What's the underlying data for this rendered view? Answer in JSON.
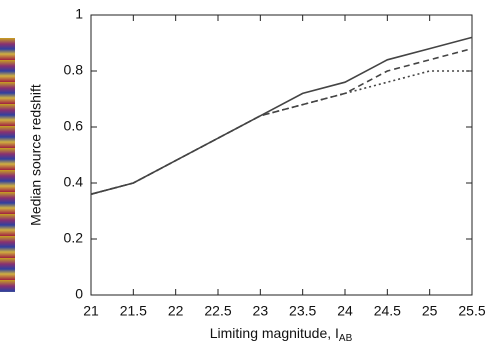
{
  "chart_data": {
    "type": "line",
    "y_label": "Median source redshift",
    "x_label": "Limiting magnitude, I",
    "x_label_sub": "AB",
    "x": [
      21,
      21.5,
      22,
      22.5,
      23,
      23.5,
      24,
      24.5,
      25,
      25.5
    ],
    "series": [
      {
        "color": "#444444",
        "dash": "solid",
        "values": [
          0.36,
          0.4,
          0.48,
          0.56,
          0.64,
          0.72,
          0.76,
          0.84,
          0.88,
          0.92
        ]
      },
      {
        "color": "#444444",
        "dash": "dashed",
        "values": [
          0.36,
          0.4,
          0.48,
          0.56,
          0.64,
          0.68,
          0.72,
          0.8,
          0.84,
          0.88
        ]
      },
      {
        "color": "#444444",
        "dash": "dotted",
        "values": [
          0.36,
          0.4,
          0.48,
          0.56,
          0.64,
          0.68,
          0.72,
          0.76,
          0.8,
          0.8
        ]
      }
    ],
    "xlim": [
      21,
      25.5
    ],
    "xticks": [
      21,
      21.5,
      22,
      22.5,
      23,
      23.5,
      24,
      24.5,
      25,
      25.5
    ],
    "ylim": [
      0,
      1
    ],
    "yticks": [
      0,
      0.2,
      0.4,
      0.6,
      0.8,
      1
    ],
    "grid": false
  }
}
